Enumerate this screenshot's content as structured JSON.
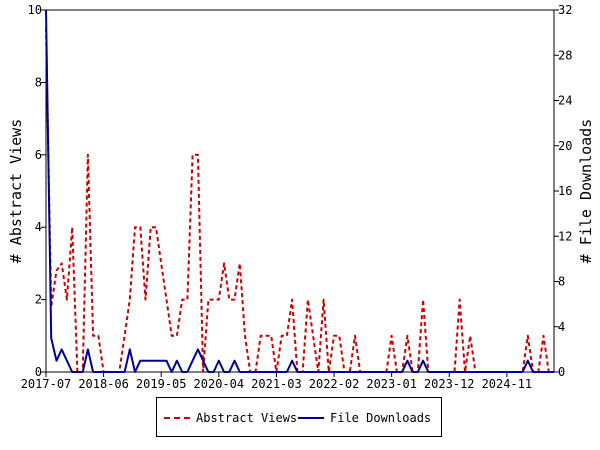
{
  "chart_data": {
    "type": "line",
    "title": "",
    "ylabel_left": "# Abstract Views",
    "ylabel_right": "# File Downloads",
    "ylim_left": [
      0,
      10
    ],
    "ylim_right": [
      0,
      32
    ],
    "yticks_left": [
      0,
      2,
      4,
      6,
      8,
      10
    ],
    "yticks_right": [
      0,
      4,
      8,
      12,
      16,
      20,
      24,
      28,
      32
    ],
    "x_range": [
      "2017-07",
      "2025-08"
    ],
    "xticks": [
      "2017-07",
      "2018-06",
      "2019-05",
      "2020-04",
      "2021-03",
      "2022-02",
      "2023-01",
      "2023-12",
      "2024-11"
    ],
    "grid": false,
    "legend_position": "bottom",
    "series": [
      {
        "name": "Abstract Views",
        "axis": "left",
        "color": "#cc0000",
        "style": "dashed",
        "points": [
          [
            "2017-07",
            9.5
          ],
          [
            "2017-08",
            1.8
          ],
          [
            "2017-09",
            2.8
          ],
          [
            "2017-10",
            3
          ],
          [
            "2017-11",
            2
          ],
          [
            "2017-12",
            4
          ],
          [
            "2018-01",
            0
          ],
          [
            "2018-02",
            0
          ],
          [
            "2018-03",
            6
          ],
          [
            "2018-04",
            1
          ],
          [
            "2018-05",
            1
          ],
          [
            "2018-06",
            0
          ],
          [
            "2018-07",
            0
          ],
          [
            "2018-08",
            0
          ],
          [
            "2018-09",
            0
          ],
          [
            "2018-10",
            1
          ],
          [
            "2018-11",
            2
          ],
          [
            "2018-12",
            4
          ],
          [
            "2019-01",
            4
          ],
          [
            "2019-02",
            2
          ],
          [
            "2019-03",
            4
          ],
          [
            "2019-04",
            4
          ],
          [
            "2019-05",
            3
          ],
          [
            "2019-06",
            2
          ],
          [
            "2019-07",
            1
          ],
          [
            "2019-08",
            1
          ],
          [
            "2019-09",
            2
          ],
          [
            "2019-10",
            2
          ],
          [
            "2019-11",
            6
          ],
          [
            "2019-12",
            6
          ],
          [
            "2020-01",
            0
          ],
          [
            "2020-02",
            2
          ],
          [
            "2020-03",
            2
          ],
          [
            "2020-04",
            2
          ],
          [
            "2020-05",
            3
          ],
          [
            "2020-06",
            2
          ],
          [
            "2020-07",
            2
          ],
          [
            "2020-08",
            3
          ],
          [
            "2020-09",
            1
          ],
          [
            "2020-10",
            0
          ],
          [
            "2020-11",
            0
          ],
          [
            "2020-12",
            1
          ],
          [
            "2021-01",
            1
          ],
          [
            "2021-02",
            1
          ],
          [
            "2021-03",
            0
          ],
          [
            "2021-04",
            1
          ],
          [
            "2021-05",
            1
          ],
          [
            "2021-06",
            2
          ],
          [
            "2021-07",
            0
          ],
          [
            "2021-08",
            0
          ],
          [
            "2021-09",
            2
          ],
          [
            "2021-10",
            1
          ],
          [
            "2021-11",
            0
          ],
          [
            "2021-12",
            2
          ],
          [
            "2022-01",
            0
          ],
          [
            "2022-02",
            1
          ],
          [
            "2022-03",
            1
          ],
          [
            "2022-04",
            0
          ],
          [
            "2022-05",
            0
          ],
          [
            "2022-06",
            1
          ],
          [
            "2022-07",
            0
          ],
          [
            "2022-08",
            0
          ],
          [
            "2022-09",
            0
          ],
          [
            "2022-10",
            0
          ],
          [
            "2022-11",
            0
          ],
          [
            "2022-12",
            0
          ],
          [
            "2023-01",
            1
          ],
          [
            "2023-02",
            0
          ],
          [
            "2023-03",
            0
          ],
          [
            "2023-04",
            1
          ],
          [
            "2023-05",
            0
          ],
          [
            "2023-06",
            0
          ],
          [
            "2023-07",
            2
          ],
          [
            "2023-08",
            0
          ],
          [
            "2023-09",
            0
          ],
          [
            "2023-10",
            0
          ],
          [
            "2023-11",
            0
          ],
          [
            "2023-12",
            0
          ],
          [
            "2024-01",
            0
          ],
          [
            "2024-02",
            2
          ],
          [
            "2024-03",
            0
          ],
          [
            "2024-04",
            1
          ],
          [
            "2024-05",
            0
          ],
          [
            "2024-06",
            0
          ],
          [
            "2024-07",
            0
          ],
          [
            "2024-08",
            0
          ],
          [
            "2024-09",
            0
          ],
          [
            "2024-10",
            0
          ],
          [
            "2024-11",
            0
          ],
          [
            "2024-12",
            0
          ],
          [
            "2025-01",
            0
          ],
          [
            "2025-02",
            0
          ],
          [
            "2025-03",
            1
          ],
          [
            "2025-04",
            0
          ],
          [
            "2025-05",
            0
          ],
          [
            "2025-06",
            1
          ],
          [
            "2025-07",
            0
          ],
          [
            "2025-08",
            0
          ]
        ]
      },
      {
        "name": "File Downloads",
        "axis": "right",
        "color": "#000099",
        "style": "solid",
        "points": [
          [
            "2017-07",
            32
          ],
          [
            "2017-08",
            3
          ],
          [
            "2017-09",
            1
          ],
          [
            "2017-10",
            2
          ],
          [
            "2017-11",
            1
          ],
          [
            "2017-12",
            0
          ],
          [
            "2018-01",
            0
          ],
          [
            "2018-02",
            0
          ],
          [
            "2018-03",
            2
          ],
          [
            "2018-04",
            0
          ],
          [
            "2018-05",
            0
          ],
          [
            "2018-06",
            0
          ],
          [
            "2018-07",
            0
          ],
          [
            "2018-08",
            0
          ],
          [
            "2018-09",
            0
          ],
          [
            "2018-10",
            0
          ],
          [
            "2018-11",
            2
          ],
          [
            "2018-12",
            0
          ],
          [
            "2019-01",
            1
          ],
          [
            "2019-02",
            1
          ],
          [
            "2019-03",
            1
          ],
          [
            "2019-04",
            1
          ],
          [
            "2019-05",
            1
          ],
          [
            "2019-06",
            1
          ],
          [
            "2019-07",
            0
          ],
          [
            "2019-08",
            1
          ],
          [
            "2019-09",
            0
          ],
          [
            "2019-10",
            0
          ],
          [
            "2019-11",
            1
          ],
          [
            "2019-12",
            2
          ],
          [
            "2020-01",
            1
          ],
          [
            "2020-02",
            0
          ],
          [
            "2020-03",
            0
          ],
          [
            "2020-04",
            1
          ],
          [
            "2020-05",
            0
          ],
          [
            "2020-06",
            0
          ],
          [
            "2020-07",
            1
          ],
          [
            "2020-08",
            0
          ],
          [
            "2020-09",
            0
          ],
          [
            "2020-10",
            0
          ],
          [
            "2020-11",
            0
          ],
          [
            "2020-12",
            0
          ],
          [
            "2021-01",
            0
          ],
          [
            "2021-02",
            0
          ],
          [
            "2021-03",
            0
          ],
          [
            "2021-04",
            0
          ],
          [
            "2021-05",
            0
          ],
          [
            "2021-06",
            1
          ],
          [
            "2021-07",
            0
          ],
          [
            "2021-08",
            0
          ],
          [
            "2021-09",
            0
          ],
          [
            "2021-10",
            0
          ],
          [
            "2021-11",
            0
          ],
          [
            "2021-12",
            0
          ],
          [
            "2022-01",
            0
          ],
          [
            "2022-02",
            0
          ],
          [
            "2022-03",
            0
          ],
          [
            "2022-04",
            0
          ],
          [
            "2022-05",
            0
          ],
          [
            "2022-06",
            0
          ],
          [
            "2022-07",
            0
          ],
          [
            "2022-08",
            0
          ],
          [
            "2022-09",
            0
          ],
          [
            "2022-10",
            0
          ],
          [
            "2022-11",
            0
          ],
          [
            "2022-12",
            0
          ],
          [
            "2023-01",
            0
          ],
          [
            "2023-02",
            0
          ],
          [
            "2023-03",
            0
          ],
          [
            "2023-04",
            1
          ],
          [
            "2023-05",
            0
          ],
          [
            "2023-06",
            0
          ],
          [
            "2023-07",
            1
          ],
          [
            "2023-08",
            0
          ],
          [
            "2023-09",
            0
          ],
          [
            "2023-10",
            0
          ],
          [
            "2023-11",
            0
          ],
          [
            "2023-12",
            0
          ],
          [
            "2024-01",
            0
          ],
          [
            "2024-02",
            0
          ],
          [
            "2024-03",
            0
          ],
          [
            "2024-04",
            0
          ],
          [
            "2024-05",
            0
          ],
          [
            "2024-06",
            0
          ],
          [
            "2024-07",
            0
          ],
          [
            "2024-08",
            0
          ],
          [
            "2024-09",
            0
          ],
          [
            "2024-10",
            0
          ],
          [
            "2024-11",
            0
          ],
          [
            "2024-12",
            0
          ],
          [
            "2025-01",
            0
          ],
          [
            "2025-02",
            0
          ],
          [
            "2025-03",
            1
          ],
          [
            "2025-04",
            0
          ],
          [
            "2025-05",
            0
          ],
          [
            "2025-06",
            0
          ],
          [
            "2025-07",
            0
          ],
          [
            "2025-08",
            0
          ]
        ]
      }
    ]
  }
}
